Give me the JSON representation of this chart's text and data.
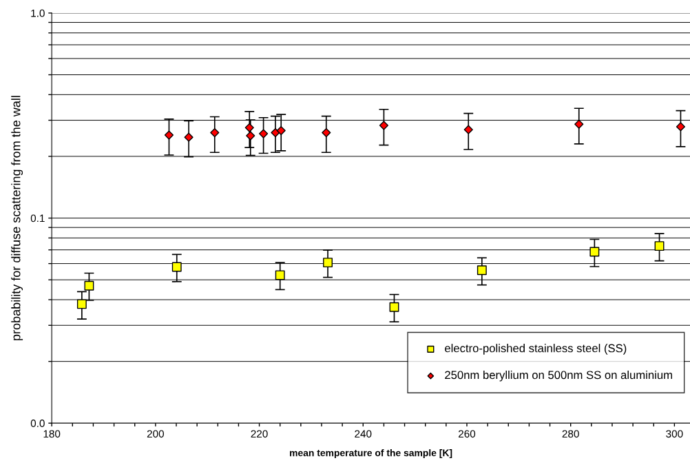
{
  "chart_data": {
    "type": "scatter",
    "xlabel": "mean temperature of the sample [K]",
    "ylabel": "probability for diffuse scattering from the wall",
    "xlim": [
      180,
      303
    ],
    "xticks": [
      180,
      {
        "value": 184,
        "label": null
      },
      {
        "value": 188,
        "label": null
      },
      {
        "value": 192,
        "label": null
      },
      {
        "value": 196,
        "label": null
      },
      200,
      {
        "value": 204,
        "label": null
      },
      {
        "value": 208,
        "label": null
      },
      {
        "value": 212,
        "label": null
      },
      {
        "value": 216,
        "label": null
      },
      220,
      {
        "value": 224,
        "label": null
      },
      {
        "value": 228,
        "label": null
      },
      {
        "value": 232,
        "label": null
      },
      {
        "value": 236,
        "label": null
      },
      240,
      {
        "value": 244,
        "label": null
      },
      {
        "value": 248,
        "label": null
      },
      {
        "value": 252,
        "label": null
      },
      {
        "value": 256,
        "label": null
      },
      260,
      {
        "value": 264,
        "label": null
      },
      {
        "value": 268,
        "label": null
      },
      {
        "value": 272,
        "label": null
      },
      {
        "value": 276,
        "label": null
      },
      280,
      {
        "value": 284,
        "label": null
      },
      {
        "value": 288,
        "label": null
      },
      {
        "value": 292,
        "label": null
      },
      {
        "value": 296,
        "label": null
      },
      300
    ],
    "log": "y",
    "ylim": [
      0.01,
      1
    ],
    "yticks": [
      {
        "value": 0.01,
        "label": "0.0"
      },
      {
        "value": 0.02,
        "label": null
      },
      {
        "value": 0.03,
        "label": null
      },
      {
        "value": 0.04,
        "label": null
      },
      {
        "value": 0.05,
        "label": null
      },
      {
        "value": 0.06,
        "label": null
      },
      {
        "value": 0.07,
        "label": null
      },
      {
        "value": 0.08,
        "label": null
      },
      {
        "value": 0.09,
        "label": null
      },
      0.1,
      {
        "value": 0.2,
        "label": null
      },
      {
        "value": 0.3,
        "label": null
      },
      {
        "value": 0.4,
        "label": null
      },
      {
        "value": 0.5,
        "label": null
      },
      {
        "value": 0.6,
        "label": null
      },
      {
        "value": 0.7,
        "label": null
      },
      {
        "value": 0.8,
        "label": null
      },
      {
        "value": 0.9,
        "label": null
      },
      {
        "value": 1,
        "label": "1.0"
      }
    ],
    "grid": "y",
    "legend": "bottom right",
    "series": [
      {
        "name": "electro-polished stainless steel (SS)",
        "color": "#ffff00",
        "marker": "square",
        "x": [
          185.8,
          187.2,
          204.1,
          224.0,
          233.2,
          246.0,
          262.9,
          284.6,
          297.1
        ],
        "values": [
          0.0381,
          0.0468,
          0.0578,
          0.0527,
          0.0607,
          0.0368,
          0.0557,
          0.0685,
          0.0731
        ],
        "errors": [
          [
            0.0322,
            0.0438
          ],
          [
            0.0397,
            0.0539
          ],
          [
            0.049,
            0.0665
          ],
          [
            0.0448,
            0.0607
          ],
          [
            0.0514,
            0.0698
          ],
          [
            0.0312,
            0.0424
          ],
          [
            0.0472,
            0.064
          ],
          [
            0.058,
            0.0787
          ],
          [
            0.0619,
            0.084
          ]
        ]
      },
      {
        "name": "250nm beryllium on 500nm SS on aluminium",
        "color": "#ff0000",
        "marker": "diamond",
        "x": [
          202.6,
          206.4,
          211.4,
          218.1,
          218.3,
          220.8,
          223.1,
          224.2,
          232.9,
          244.0,
          260.3,
          281.6,
          301.2
        ],
        "values": [
          0.254,
          0.248,
          0.261,
          0.276,
          0.252,
          0.258,
          0.261,
          0.267,
          0.261,
          0.283,
          0.27,
          0.287,
          0.279
        ],
        "errors": [
          [
            0.203,
            0.304
          ],
          [
            0.199,
            0.298
          ],
          [
            0.209,
            0.312
          ],
          [
            0.221,
            0.331
          ],
          [
            0.202,
            0.301
          ],
          [
            0.207,
            0.309
          ],
          [
            0.209,
            0.314
          ],
          [
            0.213,
            0.32
          ],
          [
            0.209,
            0.314
          ],
          [
            0.227,
            0.339
          ],
          [
            0.216,
            0.324
          ],
          [
            0.23,
            0.343
          ],
          [
            0.223,
            0.334
          ]
        ]
      }
    ]
  }
}
